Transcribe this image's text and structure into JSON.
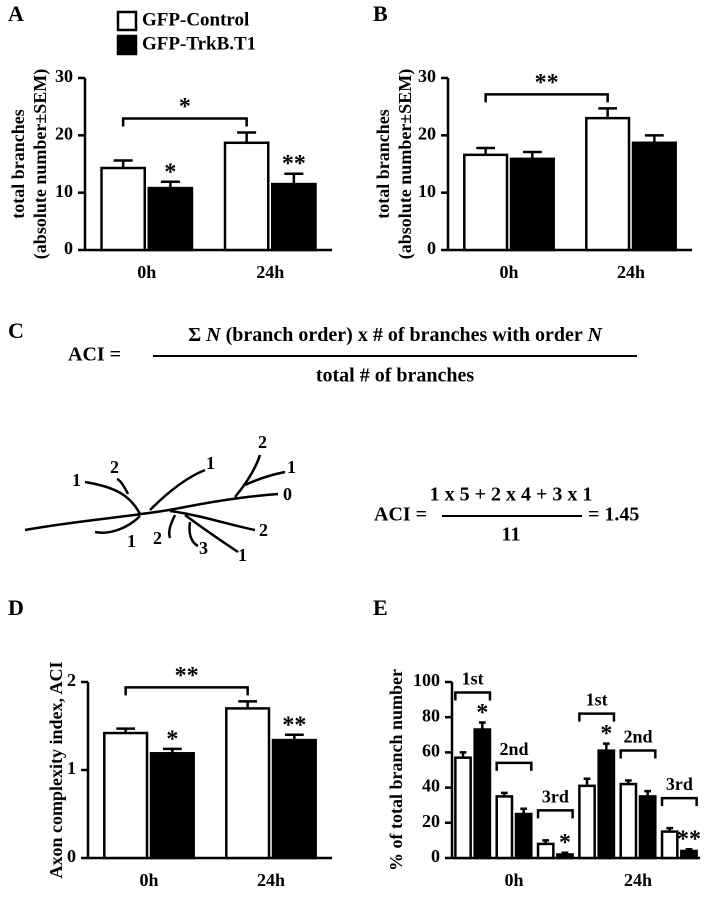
{
  "chart_data": [
    {
      "type": "bar",
      "panel": "A",
      "ylabel": [
        "total branches",
        "(absolute number±SEM)"
      ],
      "categories": [
        "0h",
        "24h"
      ],
      "series": [
        {
          "name": "GFP-Control",
          "color": "#ffffff",
          "values": [
            14.3,
            18.7
          ],
          "errors": [
            1.3,
            1.8
          ]
        },
        {
          "name": "GFP-TrkB.T1",
          "color": "#000000",
          "values": [
            10.8,
            11.5
          ],
          "errors": [
            1.1,
            1.8
          ]
        }
      ],
      "ylim": [
        0,
        30
      ],
      "yticks": [
        0,
        10,
        20,
        30
      ],
      "legend": "top",
      "annotations": [
        {
          "text": "*",
          "category": 0,
          "series": 1
        },
        {
          "text": "**",
          "category": 1,
          "series": 1
        }
      ],
      "brackets": [
        {
          "text": "*",
          "categories": [
            0,
            1
          ],
          "series": 0
        }
      ]
    },
    {
      "type": "bar",
      "panel": "B",
      "ylabel": [
        "total branches",
        "(absolute number±SEM)"
      ],
      "categories": [
        "0h",
        "24h"
      ],
      "series": [
        {
          "name": "GFP-Control",
          "color": "#ffffff",
          "values": [
            16.6,
            23.0
          ],
          "errors": [
            1.2,
            1.7
          ]
        },
        {
          "name": "GFP-TrkB.T1",
          "color": "#000000",
          "values": [
            15.9,
            18.7
          ],
          "errors": [
            1.2,
            1.3
          ]
        }
      ],
      "ylim": [
        0,
        30
      ],
      "yticks": [
        0,
        10,
        20,
        30
      ],
      "brackets": [
        {
          "text": "**",
          "categories": [
            0,
            1
          ],
          "series": 0
        }
      ]
    },
    {
      "type": "bar",
      "panel": "D",
      "ylabel": [
        "Axon complexity index, ACI"
      ],
      "categories": [
        "0h",
        "24h"
      ],
      "series": [
        {
          "name": "GFP-Control",
          "color": "#ffffff",
          "values": [
            1.42,
            1.7
          ],
          "errors": [
            0.05,
            0.08
          ]
        },
        {
          "name": "GFP-TrkB.T1",
          "color": "#000000",
          "values": [
            1.19,
            1.34
          ],
          "errors": [
            0.05,
            0.06
          ]
        }
      ],
      "ylim": [
        0,
        2
      ],
      "yticks": [
        0,
        1,
        2
      ],
      "annotations": [
        {
          "text": "*",
          "category": 0,
          "series": 1
        },
        {
          "text": "**",
          "category": 1,
          "series": 1
        }
      ],
      "brackets": [
        {
          "text": "**",
          "categories": [
            0,
            1
          ],
          "series": 0
        }
      ]
    },
    {
      "type": "bar",
      "panel": "E",
      "ylabel": [
        "% of total branch number"
      ],
      "categories": [
        "1st",
        "2nd",
        "3rd",
        "1st",
        "2nd",
        "3rd"
      ],
      "groups": [
        "0h",
        "24h"
      ],
      "series": [
        {
          "name": "GFP-Control",
          "color": "#ffffff",
          "values": [
            57,
            35,
            8,
            41,
            42,
            15
          ],
          "errors": [
            3,
            2,
            2,
            4,
            2,
            2
          ]
        },
        {
          "name": "GFP-TrkB.T1",
          "color": "#000000",
          "values": [
            73,
            25,
            2,
            61,
            35,
            4
          ],
          "errors": [
            4,
            3,
            1,
            4,
            3,
            1
          ]
        }
      ],
      "ylim": [
        0,
        100
      ],
      "yticks": [
        0,
        20,
        40,
        60,
        80,
        100
      ],
      "annotations": [
        {
          "text": "*",
          "category": 0,
          "series": 1
        },
        {
          "text": "*",
          "category": 2,
          "series": 1
        },
        {
          "text": "*",
          "category": 3,
          "series": 1
        },
        {
          "text": "**",
          "category": 5,
          "series": 1
        }
      ]
    }
  ],
  "panel_c": {
    "label": "C",
    "formula": {
      "lhs": "ACI =",
      "numerator": [
        "Σ ",
        "N",
        " (branch order) x # of branches with order ",
        "N"
      ],
      "denominator": "total # of branches"
    },
    "tree_labels": [
      "1",
      "2",
      "1",
      "2",
      "1",
      "0",
      "1",
      "2",
      "3",
      "2",
      "1"
    ],
    "example": {
      "lhs": "ACI =",
      "numerator": "1 x 5 + 2 x 4 + 3 x 1",
      "denominator": "11",
      "result": "= 1.45"
    }
  }
}
